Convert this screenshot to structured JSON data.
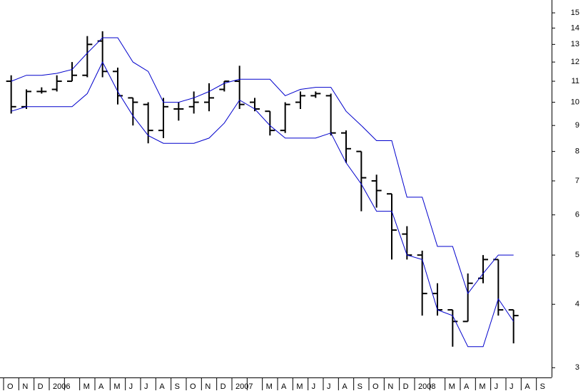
{
  "chart_data": {
    "type": "ohlc",
    "categories": [
      "O",
      "N",
      "D",
      "2006",
      null,
      "M",
      "A",
      "M",
      "J",
      "J",
      "A",
      "S",
      "O",
      "N",
      "D",
      "2007",
      null,
      "M",
      "A",
      "M",
      "J",
      "J",
      "A",
      "S",
      "O",
      "N",
      "D",
      "2008",
      null,
      "M",
      "A",
      "M",
      "J",
      "J",
      "A",
      "S"
    ],
    "ohlc": {
      "color": "#000000",
      "open": [
        11.0,
        9.8,
        10.5,
        10.6,
        11.0,
        11.3,
        13.2,
        11.5,
        10.2,
        9.9,
        8.8,
        9.7,
        9.8,
        10.0,
        10.6,
        11.0,
        10.0,
        9.6,
        8.8,
        10.0,
        10.3,
        10.3,
        8.7,
        8.0,
        7.0,
        6.6,
        5.5,
        5.0,
        4.2,
        3.9,
        3.7,
        4.5,
        4.9,
        3.9,
        null,
        null
      ],
      "high": [
        11.3,
        10.6,
        10.7,
        11.3,
        12.0,
        13.5,
        13.8,
        11.7,
        10.2,
        10.0,
        10.2,
        10.0,
        10.5,
        10.9,
        11.0,
        11.8,
        10.2,
        9.6,
        10.0,
        10.5,
        10.5,
        10.4,
        8.8,
        8.0,
        7.2,
        6.6,
        5.7,
        5.1,
        4.4,
        3.9,
        4.6,
        5.0,
        4.9,
        3.9,
        null,
        null
      ],
      "low": [
        9.5,
        9.7,
        10.4,
        10.5,
        11.0,
        11.2,
        11.2,
        9.9,
        9.0,
        8.3,
        8.5,
        9.2,
        9.5,
        9.6,
        10.5,
        9.7,
        9.6,
        8.6,
        8.7,
        9.7,
        10.2,
        8.6,
        7.6,
        6.1,
        6.2,
        4.9,
        4.9,
        3.8,
        3.8,
        3.3,
        3.7,
        4.4,
        3.8,
        3.35,
        null,
        null
      ],
      "close": [
        9.8,
        10.5,
        10.5,
        11.0,
        11.3,
        13.0,
        11.5,
        10.3,
        10.0,
        8.8,
        9.8,
        9.7,
        10.0,
        10.2,
        11.0,
        9.9,
        9.7,
        8.8,
        9.9,
        10.3,
        10.4,
        8.7,
        8.1,
        7.1,
        6.7,
        5.6,
        5.0,
        4.2,
        3.9,
        3.7,
        4.4,
        4.9,
        3.9,
        3.8,
        null,
        null
      ]
    },
    "series": [
      {
        "color": "#0000cc",
        "values": [
          11.0,
          11.3,
          11.3,
          11.4,
          11.6,
          12.5,
          13.4,
          13.4,
          12.0,
          11.5,
          10.0,
          10.0,
          10.2,
          10.5,
          10.9,
          11.1,
          11.1,
          11.1,
          10.3,
          10.6,
          10.7,
          10.7,
          9.6,
          9.0,
          8.4,
          8.4,
          6.5,
          6.5,
          5.2,
          5.2,
          4.2,
          4.6,
          5.0,
          5.0,
          null,
          null
        ]
      },
      {
        "color": "#0000cc",
        "values": [
          9.6,
          9.8,
          9.8,
          9.8,
          9.8,
          10.4,
          12.0,
          10.5,
          9.4,
          8.6,
          8.3,
          8.3,
          8.3,
          8.5,
          9.1,
          10.1,
          9.7,
          9.0,
          8.5,
          8.5,
          8.5,
          8.7,
          7.6,
          6.9,
          6.1,
          6.1,
          5.0,
          4.9,
          3.9,
          3.8,
          3.3,
          3.3,
          4.1,
          3.7,
          null,
          null
        ]
      }
    ],
    "log_scale": true,
    "ylim": [
      2.87,
      15.9
    ],
    "yticks": [
      3,
      4,
      5,
      6,
      7,
      8,
      9,
      10,
      11,
      12,
      13,
      14,
      15
    ]
  }
}
